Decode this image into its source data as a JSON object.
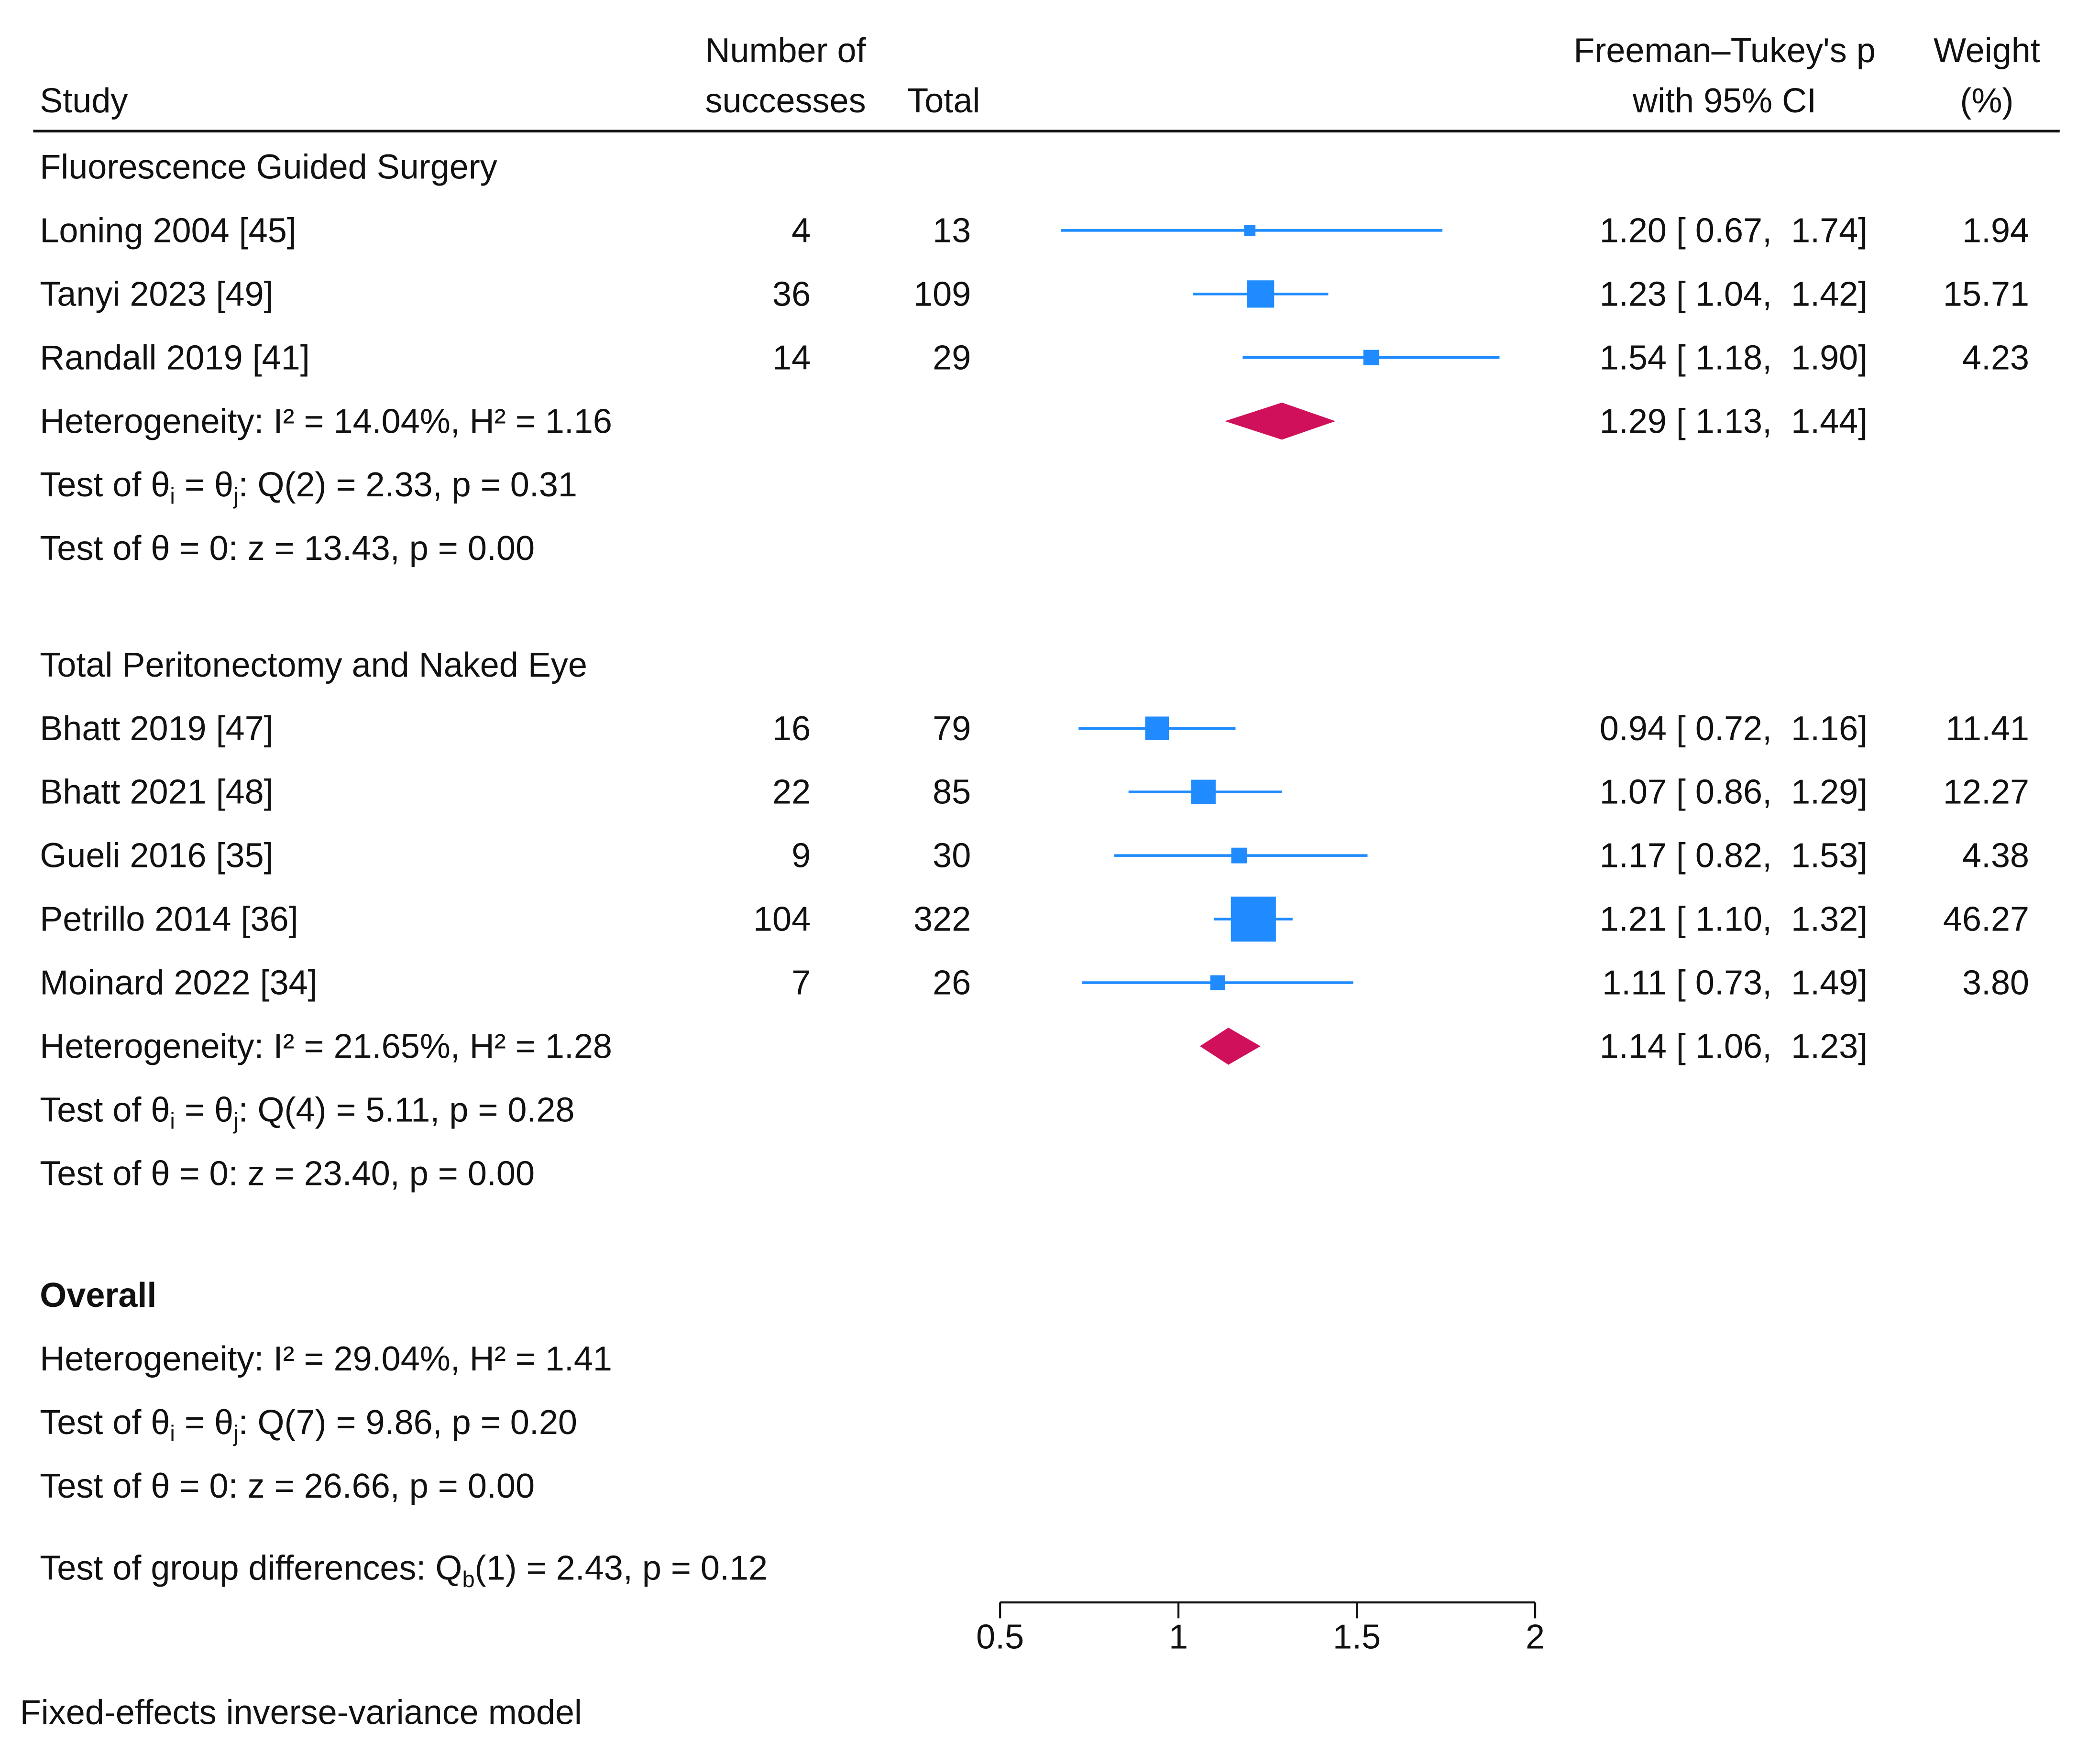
{
  "chart_data": {
    "type": "forest",
    "columns": {
      "study": "Study",
      "successes": [
        "Number of",
        "successes"
      ],
      "total": "Total",
      "effect": [
        "Freeman–Tukey's p",
        "with 95% CI"
      ],
      "weight": [
        "Weight",
        "(%)"
      ]
    },
    "xlim": [
      0.5,
      2
    ],
    "xticks": [
      0.5,
      1,
      1.5,
      2
    ],
    "study_color": "#1f8bff",
    "summary_color": "#d0105a",
    "groups": [
      {
        "name": "Fluorescence Guided Surgery",
        "studies": [
          {
            "name": "Loning 2004 [45]",
            "successes": 4,
            "total": 13,
            "estimate": 1.2,
            "ci": [
              0.67,
              1.74
            ],
            "effect_label": "1.20 [ 0.67,  1.74]",
            "weight": 1.94
          },
          {
            "name": "Tanyi 2023 [49]",
            "successes": 36,
            "total": 109,
            "estimate": 1.23,
            "ci": [
              1.04,
              1.42
            ],
            "effect_label": "1.23 [ 1.04,  1.42]",
            "weight": 15.71
          },
          {
            "name": "Randall 2019 [41]",
            "successes": 14,
            "total": 29,
            "estimate": 1.54,
            "ci": [
              1.18,
              1.9
            ],
            "effect_label": "1.54 [ 1.18,  1.90]",
            "weight": 4.23
          }
        ],
        "summary": {
          "estimate": 1.29,
          "ci": [
            1.13,
            1.44
          ],
          "effect_label": "1.29 [ 1.13,  1.44]",
          "heterogeneity": "Heterogeneity: I² = 14.04%, H² = 1.16",
          "homogeneity": [
            "Test of θ",
            "i",
            " = θ",
            "j",
            ": Q(2) = 2.33, p = 0.31"
          ],
          "z_test": "Test of θ = 0: z = 13.43, p = 0.00"
        }
      },
      {
        "name": "Total Peritonectomy and Naked Eye",
        "studies": [
          {
            "name": "Bhatt 2019 [47]",
            "successes": 16,
            "total": 79,
            "estimate": 0.94,
            "ci": [
              0.72,
              1.16
            ],
            "effect_label": "0.94 [ 0.72,  1.16]",
            "weight": 11.41
          },
          {
            "name": "Bhatt 2021 [48]",
            "successes": 22,
            "total": 85,
            "estimate": 1.07,
            "ci": [
              0.86,
              1.29
            ],
            "effect_label": "1.07 [ 0.86,  1.29]",
            "weight": 12.27
          },
          {
            "name": "Gueli 2016 [35]",
            "successes": 9,
            "total": 30,
            "estimate": 1.17,
            "ci": [
              0.82,
              1.53
            ],
            "effect_label": "1.17 [ 0.82,  1.53]",
            "weight": 4.38
          },
          {
            "name": "Petrillo 2014 [36]",
            "successes": 104,
            "total": 322,
            "estimate": 1.21,
            "ci": [
              1.1,
              1.32
            ],
            "effect_label": "1.21 [ 1.10,  1.32]",
            "weight": 46.27
          },
          {
            "name": "Moinard 2022 [34]",
            "successes": 7,
            "total": 26,
            "estimate": 1.11,
            "ci": [
              0.73,
              1.49
            ],
            "effect_label": "1.11 [ 0.73,  1.49]",
            "weight": {
              "value": 3.8,
              "label": "3.80"
            }
          }
        ],
        "summary": {
          "estimate": 1.14,
          "ci": [
            1.06,
            1.23
          ],
          "effect_label": "1.14 [ 1.06,  1.23]",
          "heterogeneity": "Heterogeneity: I² = 21.65%, H² = 1.28",
          "homogeneity": [
            "Test of θ",
            "i",
            " = θ",
            "j",
            ": Q(4) = 5.11, p = 0.28"
          ],
          "z_test": "Test of θ = 0: z = 23.40, p = 0.00"
        }
      }
    ],
    "overall": {
      "title": "Overall",
      "heterogeneity": "Heterogeneity: I² = 29.04%, H² = 1.41",
      "homogeneity": [
        "Test of θ",
        "i",
        " = θ",
        "j",
        ": Q(7) = 9.86, p = 0.20"
      ],
      "z_test": "Test of θ = 0: z = 26.66, p = 0.00"
    },
    "group_test": [
      "Test of group differences: Q",
      "b",
      "(1) = 2.43, p = 0.12"
    ],
    "footnote": "Fixed-effects inverse-variance model"
  }
}
